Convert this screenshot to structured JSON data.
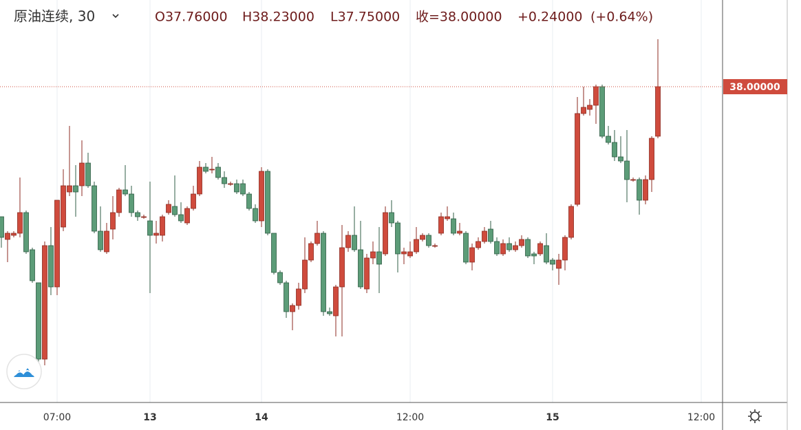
{
  "chart_data": {
    "type": "candlestick",
    "title": "原油连续, 30",
    "header_labels": [
      "O37.76000",
      "H38.23000",
      "L37.75000",
      "收=38.00000",
      "+0.24000",
      "(+0.64%)"
    ],
    "x": [
      0,
      1,
      2,
      3,
      4,
      5,
      6,
      7,
      8,
      9,
      10,
      11,
      12,
      13,
      14,
      15,
      16,
      17,
      18,
      19,
      20,
      21,
      22,
      23,
      24,
      25,
      26,
      27,
      28,
      29,
      30,
      31,
      32,
      33,
      34,
      35,
      36,
      37,
      38,
      39,
      40,
      41,
      42,
      43,
      44,
      45,
      46,
      47,
      48,
      49,
      50,
      51,
      52,
      53,
      54,
      55,
      56,
      57,
      58,
      59,
      60,
      61,
      62,
      63,
      64,
      65,
      66,
      67,
      68,
      69,
      70,
      71,
      72,
      73,
      74,
      75,
      76,
      77,
      78,
      79,
      80,
      81,
      82,
      83,
      84,
      85,
      86,
      87,
      88,
      89,
      90,
      91,
      92,
      93,
      94,
      95,
      96,
      97,
      98,
      99,
      100,
      101,
      102,
      103,
      104,
      105,
      106
    ],
    "open": [
      37.37,
      37.26,
      37.28,
      37.29,
      37.39,
      37.21,
      37.05,
      36.68,
      37.23,
      37.03,
      37.32,
      37.49,
      37.52,
      37.52,
      37.63,
      37.52,
      37.3,
      37.2,
      37.31,
      37.39,
      37.5,
      37.48,
      37.39,
      37.37,
      37.35,
      37.28,
      37.28,
      37.39,
      37.42,
      37.38,
      37.34,
      37.41,
      37.48,
      37.61,
      37.6,
      37.61,
      37.56,
      37.53,
      37.53,
      37.53,
      37.48,
      37.41,
      37.35,
      37.59,
      37.29,
      37.1,
      37.05,
      36.91,
      36.94,
      37.02,
      37.16,
      37.24,
      37.29,
      36.91,
      36.89,
      37.03,
      37.22,
      37.28,
      37.21,
      37.02,
      37.17,
      37.2,
      37.19,
      37.39,
      37.34,
      37.19,
      37.18,
      37.2,
      37.26,
      37.28,
      37.23,
      37.29,
      37.36,
      37.36,
      37.29,
      37.29,
      37.15,
      37.22,
      37.25,
      37.31,
      37.25,
      37.19,
      37.24,
      37.21,
      37.23,
      37.26,
      37.19,
      37.19,
      37.23,
      37.16,
      37.12,
      37.16,
      37.27,
      37.43,
      37.87,
      37.89,
      37.91,
      38.0,
      37.76,
      37.73,
      37.66,
      37.64,
      37.55,
      37.55,
      37.45,
      37.55,
      37.76
    ],
    "high": [
      37.37,
      37.3,
      37.3,
      37.56,
      37.4,
      37.22,
      37.05,
      37.25,
      37.32,
      37.45,
      37.6,
      37.81,
      37.62,
      37.74,
      37.68,
      37.54,
      37.42,
      37.34,
      37.47,
      37.51,
      37.62,
      37.52,
      37.4,
      37.38,
      37.54,
      37.35,
      37.38,
      37.45,
      37.57,
      37.44,
      37.42,
      37.52,
      37.64,
      37.63,
      37.66,
      37.63,
      37.59,
      37.54,
      37.55,
      37.55,
      37.49,
      37.43,
      37.61,
      37.6,
      37.29,
      37.11,
      37.06,
      36.95,
      37.05,
      37.27,
      37.25,
      37.35,
      37.3,
      36.93,
      37.04,
      37.33,
      37.3,
      37.42,
      37.35,
      37.19,
      37.25,
      37.32,
      37.42,
      37.45,
      37.35,
      37.22,
      37.25,
      37.32,
      37.29,
      37.29,
      37.24,
      37.39,
      37.42,
      37.39,
      37.34,
      37.3,
      37.24,
      37.27,
      37.32,
      37.35,
      37.27,
      37.26,
      37.27,
      37.25,
      37.28,
      37.27,
      37.2,
      37.25,
      37.29,
      37.17,
      37.19,
      37.28,
      37.43,
      37.95,
      38.0,
      37.94,
      38.01,
      38.01,
      37.81,
      37.79,
      37.76,
      37.79,
      37.56,
      37.56,
      37.57,
      37.76,
      38.23
    ],
    "low": [
      37.22,
      37.15,
      37.27,
      37.27,
      37.19,
      37.05,
      36.64,
      36.65,
      36.99,
      36.99,
      37.3,
      37.47,
      37.37,
      37.47,
      37.51,
      37.29,
      37.2,
      37.19,
      37.26,
      37.37,
      37.47,
      37.37,
      37.35,
      37.36,
      37.0,
      37.24,
      37.25,
      37.38,
      37.37,
      37.34,
      37.33,
      37.4,
      37.47,
      37.58,
      37.58,
      37.55,
      37.51,
      37.52,
      37.48,
      37.47,
      37.4,
      37.34,
      37.32,
      37.28,
      37.09,
      37.04,
      36.88,
      36.82,
      36.92,
      37.0,
      37.15,
      37.23,
      36.89,
      36.89,
      36.79,
      36.79,
      37.2,
      37.2,
      37.02,
      37.0,
      37.14,
      37.0,
      37.18,
      37.32,
      37.1,
      37.14,
      37.17,
      37.19,
      37.25,
      37.22,
      37.22,
      37.28,
      37.35,
      37.28,
      37.28,
      37.14,
      37.11,
      37.21,
      37.24,
      37.24,
      37.18,
      37.18,
      37.2,
      37.2,
      37.22,
      37.17,
      37.14,
      37.18,
      37.14,
      37.11,
      37.04,
      37.11,
      37.26,
      37.42,
      37.86,
      37.86,
      37.82,
      37.75,
      37.72,
      37.64,
      37.63,
      37.44,
      37.54,
      37.38,
      37.43,
      37.49,
      37.75
    ],
    "close": [
      37.27,
      37.29,
      37.29,
      37.39,
      37.2,
      37.06,
      36.68,
      37.23,
      37.03,
      37.45,
      37.52,
      37.52,
      37.49,
      37.63,
      37.52,
      37.3,
      37.21,
      37.3,
      37.39,
      37.5,
      37.48,
      37.39,
      37.37,
      37.37,
      37.28,
      37.29,
      37.37,
      37.43,
      37.38,
      37.35,
      37.41,
      37.48,
      37.61,
      37.59,
      37.6,
      37.56,
      37.53,
      37.53,
      37.49,
      37.48,
      37.41,
      37.35,
      37.59,
      37.29,
      37.1,
      37.05,
      36.91,
      36.94,
      37.02,
      37.16,
      37.24,
      37.29,
      36.91,
      36.9,
      37.03,
      37.22,
      37.28,
      37.21,
      37.03,
      37.17,
      37.2,
      37.14,
      37.39,
      37.34,
      37.19,
      37.2,
      37.2,
      37.26,
      37.28,
      37.23,
      37.23,
      37.37,
      37.37,
      37.29,
      37.3,
      37.15,
      37.22,
      37.25,
      37.3,
      37.25,
      37.19,
      37.24,
      37.21,
      37.23,
      37.26,
      37.18,
      37.18,
      37.24,
      37.15,
      37.14,
      37.16,
      37.27,
      37.42,
      37.87,
      37.9,
      37.91,
      38.0,
      37.76,
      37.73,
      37.66,
      37.64,
      37.55,
      37.55,
      37.45,
      37.55,
      37.75,
      38.0
    ],
    "up_color": "#cf4b3d",
    "down_color": "#5c9c78",
    "xlim": [
      -0.22,
      116.44
    ],
    "ylim": [
      36.47,
      38.42
    ],
    "xticks": [
      {
        "value": 9,
        "label": "07:00"
      },
      {
        "value": 24,
        "label": "13"
      },
      {
        "value": 42,
        "label": "14"
      },
      {
        "value": 66,
        "label": "12:00"
      },
      {
        "value": 89,
        "label": "15"
      },
      {
        "value": 113,
        "label": "12:00"
      }
    ],
    "last_price": {
      "value": 38,
      "label": "38.00000"
    },
    "grid": true
  }
}
